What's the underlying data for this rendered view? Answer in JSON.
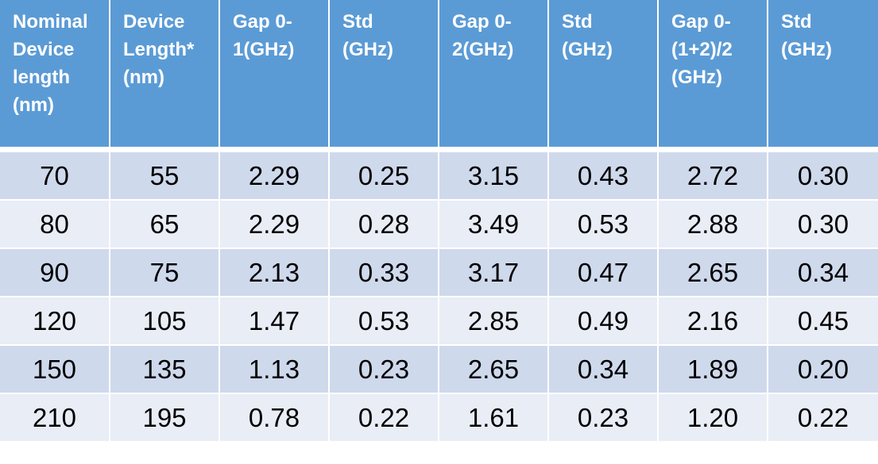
{
  "table": {
    "headers": [
      "Nominal\nDevice\nlength\n(nm)",
      "Device\nLength*\n(nm)",
      "Gap 0-\n1(GHz)",
      "Std\n(GHz)",
      "Gap 0-\n2(GHz)",
      "Std\n(GHz)",
      "Gap 0-\n(1+2)/2\n(GHz)",
      "Std\n(GHz)"
    ],
    "rows": [
      [
        "70",
        "55",
        "2.29",
        "0.25",
        "3.15",
        "0.43",
        "2.72",
        "0.30"
      ],
      [
        "80",
        "65",
        "2.29",
        "0.28",
        "3.49",
        "0.53",
        "2.88",
        "0.30"
      ],
      [
        "90",
        "75",
        "2.13",
        "0.33",
        "3.17",
        "0.47",
        "2.65",
        "0.34"
      ],
      [
        "120",
        "105",
        "1.47",
        "0.53",
        "2.85",
        "0.49",
        "2.16",
        "0.45"
      ],
      [
        "150",
        "135",
        "1.13",
        "0.23",
        "2.65",
        "0.34",
        "1.89",
        "0.20"
      ],
      [
        "210",
        "195",
        "0.78",
        "0.22",
        "1.61",
        "0.23",
        "1.20",
        "0.22"
      ]
    ]
  },
  "colors": {
    "header_bg": "#5b9bd5",
    "header_text": "#ffffff",
    "row_band_dark": "#cfd9ec",
    "row_band_light": "#e9edf6"
  }
}
